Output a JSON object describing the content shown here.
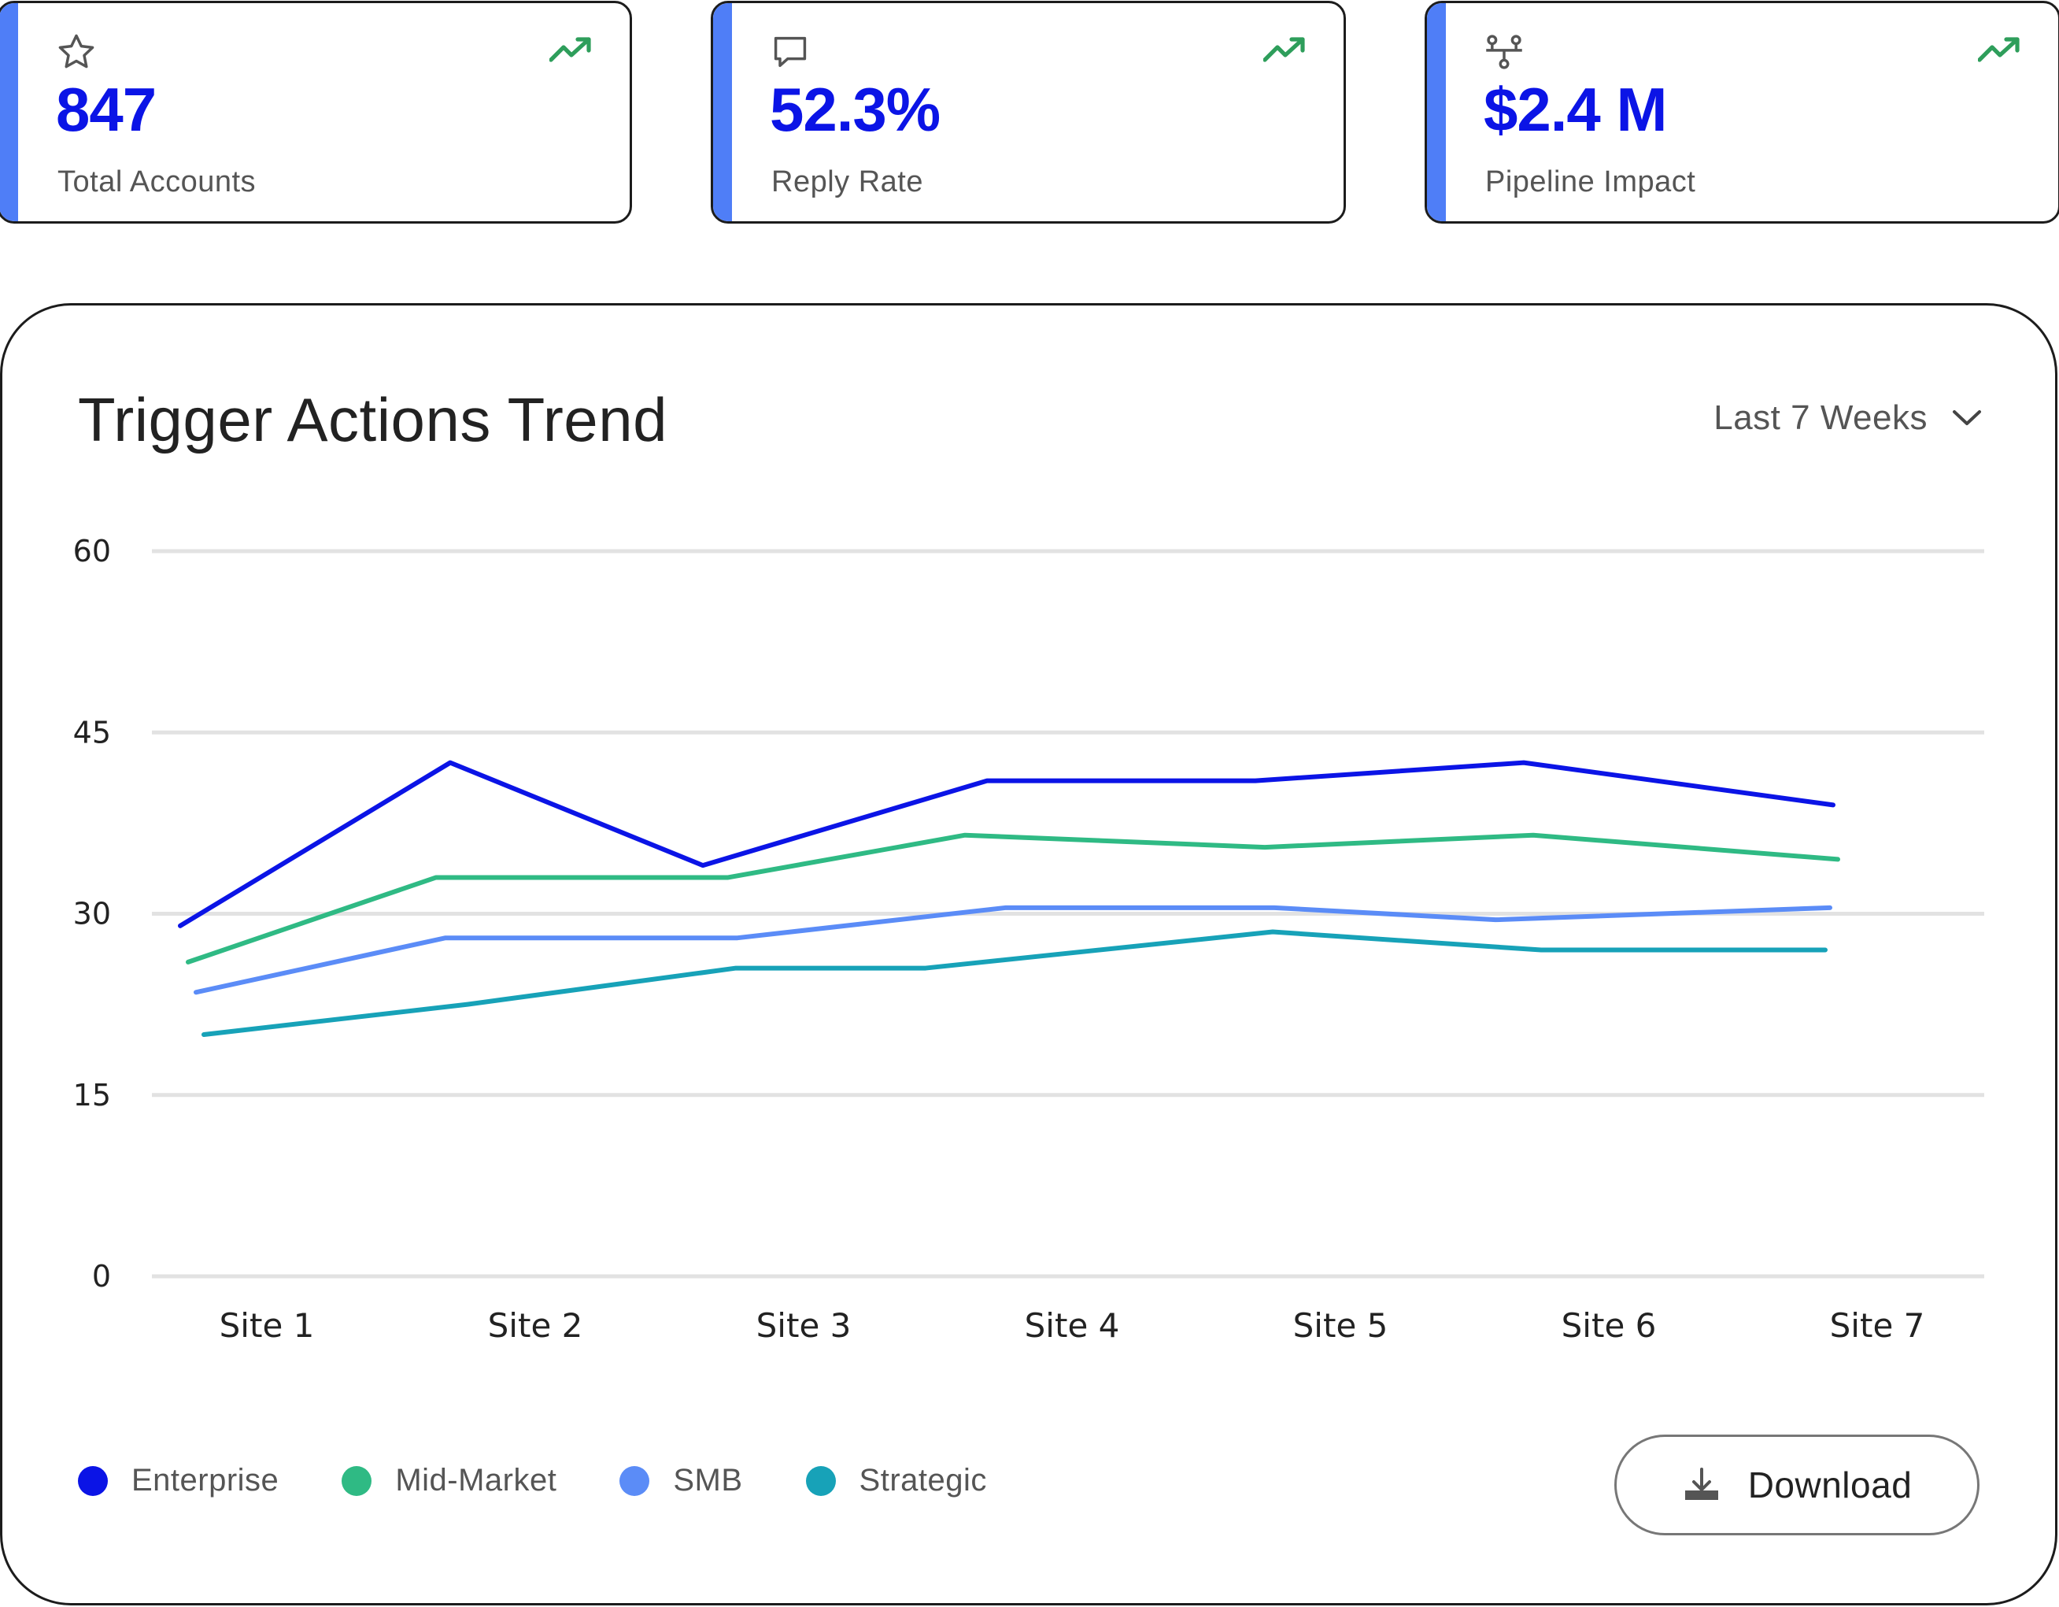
{
  "stats": [
    {
      "value": "847",
      "label": "Total Accounts",
      "icon": "star-icon",
      "trend_icon": "trending-up-icon"
    },
    {
      "value": "52.3%",
      "label": "Reply Rate",
      "icon": "message-icon",
      "trend_icon": "trending-up-icon"
    },
    {
      "value": "$2.4 M",
      "label": "Pipeline Impact",
      "icon": "pipeline-icon",
      "trend_icon": "trending-up-icon"
    }
  ],
  "colors": {
    "accent": "#4f7ef7",
    "value": "#0b14e6",
    "trend": "#2e9e5b"
  },
  "chart_panel": {
    "title": "Trigger Actions Trend",
    "range_select": {
      "value": "Last 7 Weeks",
      "icon": "chevron-down-icon"
    },
    "download": {
      "label": "Download",
      "icon": "download-icon"
    }
  },
  "chart_data": {
    "type": "line",
    "categories": [
      "Site 1",
      "Site 2",
      "Site 3",
      "Site 4",
      "Site 5",
      "Site 6",
      "Site 7"
    ],
    "ylim": [
      0,
      60
    ],
    "yticks": [
      "0",
      "15",
      "30",
      "45",
      "60"
    ],
    "grid": true,
    "legend_placement": "bottom-left",
    "series": [
      {
        "name": "Enterprise",
        "color": "#0b14e6",
        "values": [
          29,
          42.5,
          34,
          41,
          41,
          42.5,
          39
        ]
      },
      {
        "name": "Mid-Market",
        "color": "#2fba84",
        "values": [
          26,
          33,
          33,
          36.5,
          35.5,
          36.5,
          34.5
        ]
      },
      {
        "name": "SMB",
        "color": "#5b8cf7",
        "values": [
          23.5,
          28,
          28,
          30.5,
          30.5,
          29.5,
          30.5
        ]
      },
      {
        "name": "Strategic",
        "color": "#17a2b8",
        "values": [
          20,
          22.5,
          25.5,
          25.5,
          28.5,
          27,
          27
        ]
      }
    ]
  }
}
